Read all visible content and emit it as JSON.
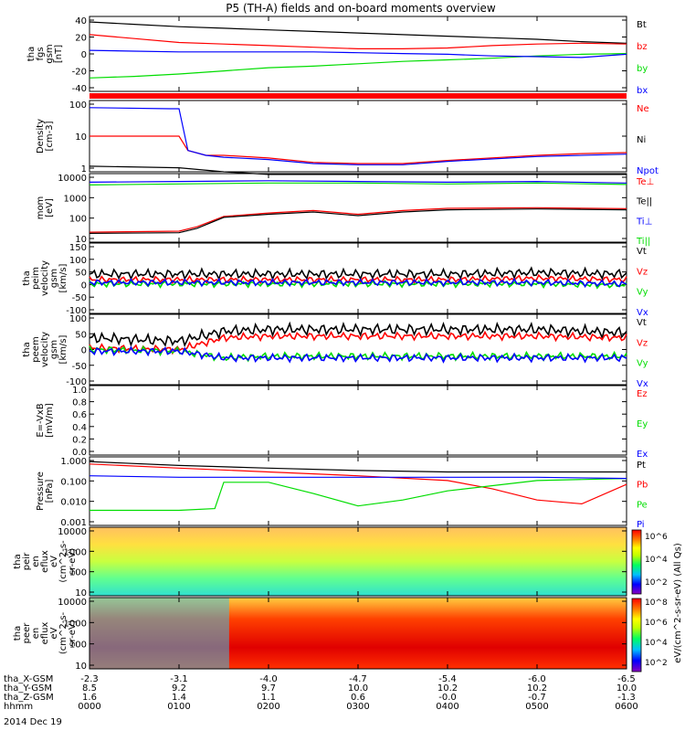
{
  "title": "P5 (TH-A) fields and on-board moments overview",
  "date_label": "2014 Dec 19",
  "colors": {
    "black": "#000000",
    "red": "#ff0000",
    "green": "#00dd00",
    "blue": "#0000ff",
    "dark_green": "#00aa00"
  },
  "panels": [
    {
      "id": "fgs",
      "ylabel": [
        "tha",
        "fgs",
        "gsm",
        "[nT]"
      ],
      "ticks": [
        "40",
        "20",
        "0",
        "-20",
        "-40"
      ],
      "legend": [
        {
          "text": "Bt",
          "color": "#000000"
        },
        {
          "text": "bz",
          "color": "#ff0000"
        },
        {
          "text": "by",
          "color": "#00dd00"
        },
        {
          "text": "bx",
          "color": "#0000ff"
        }
      ]
    },
    {
      "id": "density",
      "ylabel": [
        "Density",
        "[cm-3]"
      ],
      "ticks": [
        "100",
        "10",
        "1"
      ],
      "legend": [
        {
          "text": "Ne",
          "color": "#ff0000"
        },
        {
          "text": "Ni",
          "color": "#000000"
        },
        {
          "text": "Npot",
          "color": "#0000ff"
        }
      ]
    },
    {
      "id": "temp",
      "ylabel": [
        "mom",
        "[eV]"
      ],
      "ticks": [
        "10000",
        "1000",
        "100",
        "10"
      ],
      "legend": [
        {
          "text": "Te⊥",
          "color": "#ff0000"
        },
        {
          "text": "Te||",
          "color": "#000000"
        },
        {
          "text": "Ti⊥",
          "color": "#0000ff"
        },
        {
          "text": "Ti||",
          "color": "#00dd00"
        }
      ]
    },
    {
      "id": "peim",
      "ylabel": [
        "tha",
        "peim",
        "velocity",
        "gsm",
        "[km/s]"
      ],
      "ticks": [
        "150",
        "100",
        "50",
        "0",
        "-50",
        "-100"
      ],
      "legend": [
        {
          "text": "Vt",
          "color": "#000000"
        },
        {
          "text": "Vz",
          "color": "#ff0000"
        },
        {
          "text": "Vy",
          "color": "#00dd00"
        },
        {
          "text": "Vx",
          "color": "#0000ff"
        }
      ]
    },
    {
      "id": "peem",
      "ylabel": [
        "tha",
        "peem",
        "velocity",
        "gsm",
        "[km/s]"
      ],
      "ticks": [
        "100",
        "50",
        "0",
        "-50",
        "-100"
      ],
      "legend": [
        {
          "text": "Vt",
          "color": "#000000"
        },
        {
          "text": "Vz",
          "color": "#ff0000"
        },
        {
          "text": "Vy",
          "color": "#00dd00"
        },
        {
          "text": "Vx",
          "color": "#0000ff"
        }
      ]
    },
    {
      "id": "efield",
      "ylabel": [
        "E=-VxB",
        "[mV/m]"
      ],
      "ticks": [
        "1.0",
        "0.8",
        "0.6",
        "0.4",
        "0.2",
        "0.0"
      ],
      "legend": [
        {
          "text": "Ez",
          "color": "#ff0000"
        },
        {
          "text": "Ey",
          "color": "#00dd00"
        },
        {
          "text": "Ex",
          "color": "#0000ff"
        }
      ]
    },
    {
      "id": "pressure",
      "ylabel": [
        "Pressure",
        "[nPa]"
      ],
      "ticks": [
        "1.000",
        "0.100",
        "0.010",
        "0.001"
      ],
      "legend": [
        {
          "text": "Pt",
          "color": "#000000"
        },
        {
          "text": "Pb",
          "color": "#ff0000"
        },
        {
          "text": "Pe",
          "color": "#00dd00"
        },
        {
          "text": "Pi",
          "color": "#0000ff"
        }
      ]
    },
    {
      "id": "peir",
      "ylabel": [
        "tha",
        "peir",
        "en",
        "eflux",
        "eV",
        "(cm^2-s-",
        "sr-eV)"
      ],
      "ticks": [
        "10000",
        "1000",
        "100",
        "10"
      ]
    },
    {
      "id": "peer",
      "ylabel": [
        "tha",
        "peer",
        "en",
        "eflux",
        "eV",
        "(cm^2-s-",
        "sr-eV)"
      ],
      "ticks": [
        "10000",
        "1000",
        "100",
        "10"
      ]
    }
  ],
  "colorbar": {
    "label": "eV/(cm^2-s-sr-eV) (All Qs)",
    "top_ticks": [
      "10^6",
      "10^4",
      "10^2"
    ],
    "bottom_ticks": [
      "10^8",
      "10^6",
      "10^4",
      "10^2"
    ]
  },
  "footer": {
    "rows": [
      {
        "label": "tha_X-GSM",
        "values": [
          "-2.3",
          "-3.1",
          "-4.0",
          "-4.7",
          "-5.4",
          "-6.0",
          "-6.5"
        ]
      },
      {
        "label": "tha_Y-GSM",
        "values": [
          "8.5",
          "9.2",
          "9.7",
          "10.0",
          "10.2",
          "10.2",
          "10.0"
        ]
      },
      {
        "label": "tha_Z-GSM",
        "values": [
          "1.6",
          "1.4",
          "1.1",
          "0.6",
          "-0.0",
          "-0.7",
          "-1.3"
        ]
      },
      {
        "label": "hhmm",
        "values": [
          "0000",
          "0100",
          "0200",
          "0300",
          "0400",
          "0500",
          "0600"
        ]
      }
    ]
  },
  "chart_data": {
    "type": "line",
    "x_label": "hhmm",
    "x_ticks": [
      "0000",
      "0100",
      "0200",
      "0300",
      "0400",
      "0500",
      "0600"
    ],
    "panels": [
      {
        "id": "fgs",
        "ylim": [
          -50,
          45
        ],
        "series": [
          {
            "name": "Bt",
            "color": "#000000",
            "x": [
              0,
              0.5,
              1,
              1.5,
              2,
              2.5,
              3,
              3.5,
              4,
              4.5,
              5,
              5.5,
              6
            ],
            "y": [
              38,
              35,
              32,
              30,
              28,
              26,
              24,
              22,
              20,
              18,
              16,
              13,
              11
            ]
          },
          {
            "name": "bz",
            "color": "#ff0000",
            "x": [
              0,
              0.5,
              1,
              1.5,
              2,
              2.5,
              3,
              3.5,
              4,
              4.5,
              5,
              5.5,
              6
            ],
            "y": [
              22,
              17,
              12,
              10,
              8,
              6,
              4,
              4,
              5,
              8,
              10,
              11,
              10
            ]
          },
          {
            "name": "by",
            "color": "#00dd00",
            "x": [
              0,
              0.5,
              1,
              1.5,
              2,
              2.5,
              3,
              3.5,
              4,
              4.5,
              5,
              5.5,
              6
            ],
            "y": [
              -33,
              -31,
              -28,
              -24,
              -20,
              -18,
              -15,
              -12,
              -10,
              -8,
              -5,
              -3,
              -2
            ]
          },
          {
            "name": "bx",
            "color": "#0000ff",
            "x": [
              0,
              0.5,
              1,
              1.5,
              2,
              2.5,
              3,
              3.5,
              4,
              4.5,
              5,
              5.5,
              6
            ],
            "y": [
              2,
              1,
              0,
              0,
              0,
              0,
              -1,
              -2,
              -3,
              -5,
              -6,
              -7,
              -3
            ]
          }
        ]
      },
      {
        "id": "density",
        "log": true,
        "ylim": [
          0.5,
          200
        ],
        "series": [
          {
            "name": "Ne",
            "color": "#ff0000",
            "x": [
              0,
              1,
              1.1,
              1.3,
              1.5,
              2,
              2.5,
              3,
              3.5,
              4,
              5,
              5.5,
              6
            ],
            "y": [
              10,
              10,
              3,
              2,
              2,
              1.6,
              1.1,
              1,
              1,
              1.3,
              2,
              2.3,
              2.5
            ]
          },
          {
            "name": "Ni",
            "color": "#000000",
            "x": [
              0,
              1,
              1.5,
              2,
              3,
              4,
              5,
              6
            ],
            "y": [
              0.8,
              0.7,
              0.5,
              0.4,
              0.4,
              0.4,
              0.4,
              0.4
            ]
          },
          {
            "name": "Npot",
            "color": "#0000ff",
            "x": [
              0,
              0.9,
              1,
              1.1,
              1.3,
              1.5,
              2,
              2.5,
              3,
              3.5,
              4,
              5,
              6
            ],
            "y": [
              110,
              100,
              100,
              3,
              2,
              1.7,
              1.4,
              1,
              0.9,
              0.9,
              1.2,
              1.8,
              2.2
            ]
          }
        ]
      },
      {
        "id": "temp",
        "log": true,
        "ylim": [
          5,
          15000
        ],
        "series": [
          {
            "name": "Te⊥",
            "color": "#ff0000",
            "x": [
              0,
              1,
              1.2,
              1.5,
              2,
              2.5,
              3,
              3.5,
              4,
              5,
              6
            ],
            "y": [
              16,
              18,
              30,
              100,
              150,
              200,
              130,
              200,
              260,
              280,
              250
            ]
          },
          {
            "name": "Te||",
            "color": "#000000",
            "x": [
              0,
              1,
              1.2,
              1.5,
              2,
              2.5,
              3,
              3.5,
              4,
              5,
              6
            ],
            "y": [
              14,
              15,
              25,
              90,
              130,
              170,
              110,
              170,
              220,
              240,
              220
            ]
          },
          {
            "name": "Ti⊥",
            "color": "#0000ff",
            "x": [
              0,
              1,
              2,
              3,
              4,
              5,
              6
            ],
            "y": [
              5500,
              6000,
              6500,
              6000,
              5500,
              6000,
              5000
            ]
          },
          {
            "name": "Ti||",
            "color": "#00dd00",
            "x": [
              0,
              1,
              2,
              3,
              4,
              5,
              6
            ],
            "y": [
              4000,
              4500,
              5000,
              5000,
              4500,
              5000,
              4200
            ]
          }
        ]
      },
      {
        "id": "peim",
        "ylim": [
          -100,
          150
        ],
        "series": [
          {
            "name": "Vt",
            "color": "#000000",
            "x": [
              0,
              1,
              2,
              3,
              4,
              5,
              6
            ],
            "y": [
              40,
              40,
              40,
              40,
              40,
              45,
              40
            ]
          },
          {
            "name": "Vz",
            "color": "#ff0000",
            "x": [
              0,
              1,
              2,
              3,
              4,
              5,
              6
            ],
            "y": [
              20,
              20,
              20,
              20,
              20,
              25,
              20
            ]
          },
          {
            "name": "Vy",
            "color": "#00dd00",
            "x": [
              0,
              1,
              2,
              3,
              4,
              5,
              6
            ],
            "y": [
              5,
              5,
              5,
              5,
              5,
              5,
              0
            ]
          },
          {
            "name": "Vx",
            "color": "#0000ff",
            "x": [
              0,
              1,
              2,
              3,
              4,
              5,
              6
            ],
            "y": [
              10,
              10,
              10,
              10,
              10,
              10,
              5
            ]
          }
        ]
      },
      {
        "id": "peem",
        "ylim": [
          -100,
          110
        ],
        "series": [
          {
            "name": "Vt",
            "color": "#000000",
            "x": [
              0,
              1,
              1.5,
              2,
              3,
              4,
              5,
              6
            ],
            "y": [
              40,
              30,
              60,
              65,
              65,
              65,
              65,
              55
            ]
          },
          {
            "name": "Vz",
            "color": "#ff0000",
            "x": [
              0,
              1,
              1.5,
              2,
              3,
              4,
              5,
              6
            ],
            "y": [
              10,
              5,
              40,
              45,
              45,
              45,
              45,
              40
            ]
          },
          {
            "name": "Vy",
            "color": "#00dd00",
            "x": [
              0,
              1,
              1.5,
              2,
              3,
              4,
              5,
              6
            ],
            "y": [
              5,
              0,
              -20,
              -15,
              -15,
              -15,
              -15,
              -15
            ]
          },
          {
            "name": "Vx",
            "color": "#0000ff",
            "x": [
              0,
              1,
              1.5,
              2,
              3,
              4,
              5,
              6
            ],
            "y": [
              0,
              0,
              -20,
              -20,
              -20,
              -20,
              -20,
              -20
            ]
          }
        ]
      },
      {
        "id": "efield",
        "ylim": [
          0,
          1
        ],
        "series": []
      },
      {
        "id": "pressure",
        "log": true,
        "ylim": [
          0.001,
          1.5
        ],
        "series": [
          {
            "name": "Pt",
            "color": "#000000",
            "x": [
              0,
              1,
              2,
              3,
              4,
              5,
              6
            ],
            "y": [
              0.9,
              0.6,
              0.45,
              0.35,
              0.3,
              0.3,
              0.3
            ]
          },
          {
            "name": "Pb",
            "color": "#ff0000",
            "x": [
              0,
              1,
              2,
              3,
              4,
              4.5,
              5,
              5.5,
              6
            ],
            "y": [
              0.7,
              0.45,
              0.3,
              0.2,
              0.12,
              0.05,
              0.015,
              0.01,
              0.08
            ]
          },
          {
            "name": "Pe",
            "color": "#00dd00",
            "x": [
              0,
              1,
              1.4,
              1.5,
              2,
              2.5,
              3,
              3.5,
              4,
              5,
              6
            ],
            "y": [
              0.005,
              0.005,
              0.006,
              0.1,
              0.1,
              0.03,
              0.008,
              0.015,
              0.04,
              0.12,
              0.15
            ]
          },
          {
            "name": "Pi",
            "color": "#0000ff",
            "x": [
              0,
              1,
              2,
              3,
              4,
              5,
              6
            ],
            "y": [
              0.2,
              0.17,
              0.17,
              0.17,
              0.17,
              0.17,
              0.15
            ]
          }
        ]
      }
    ]
  }
}
